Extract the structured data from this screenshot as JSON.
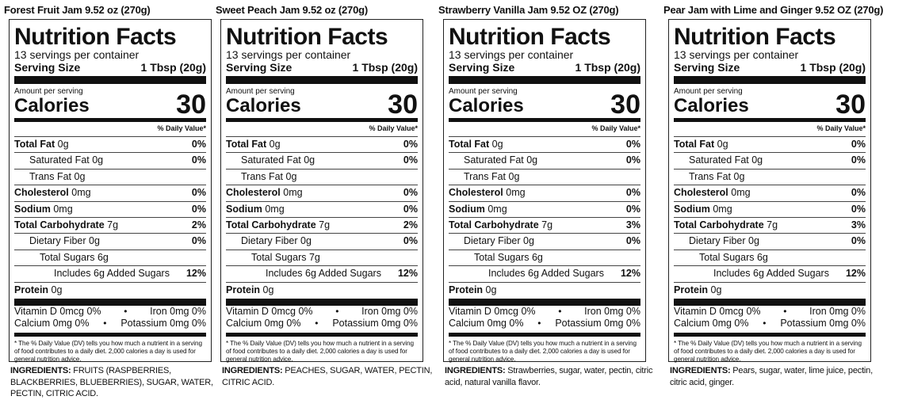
{
  "labels": {
    "nutrition_facts": "Nutrition Facts",
    "servings": "13 servings per container",
    "serving_size_label": "Serving Size",
    "serving_size_value": "1 Tbsp (20g)",
    "amount_per_serving": "Amount per serving",
    "calories_label": "Calories",
    "calories_value": "30",
    "dv_header": "% Daily Value*",
    "protein": "Protein",
    "protein_value": "0g",
    "vitamin_d": "Vitamin D 0mcg 0%",
    "iron": "Iron 0mg 0%",
    "calcium": "Calcium 0mg 0%",
    "potassium": "Potassium 0mg 0%",
    "bullet": "•",
    "footnote": "* The % Daily Value (DV) tells you how much a nutrient in a serving of food contributes to a daily diet. 2,000 calories a day is used for general nutrition advice.",
    "ingredients_label": "INGREDIENTS:"
  },
  "products": [
    {
      "title": "Forest Fruit Jam 9.52 oz (270g)",
      "rows": [
        {
          "name": "Total Fat",
          "amount": "0g",
          "pct": "0%",
          "bold": true,
          "indent": 0
        },
        {
          "name": "Saturated Fat",
          "amount": "0g",
          "pct": "0%",
          "bold": false,
          "indent": 1
        },
        {
          "name": "Trans Fat",
          "amount": "0g",
          "pct": "",
          "bold": false,
          "indent": 1
        },
        {
          "name": "Cholesterol",
          "amount": "0mg",
          "pct": "0%",
          "bold": true,
          "indent": 0
        },
        {
          "name": "Sodium",
          "amount": "0mg",
          "pct": "0%",
          "bold": true,
          "indent": 0
        },
        {
          "name": "Total Carbohydrate",
          "amount": "7g",
          "pct": "2%",
          "bold": true,
          "indent": 0
        },
        {
          "name": "Dietary Fiber",
          "amount": "0g",
          "pct": "0%",
          "bold": false,
          "indent": 1
        },
        {
          "name": "Total Sugars",
          "amount": "6g",
          "pct": "",
          "bold": false,
          "indent": 2
        },
        {
          "name": "Includes 6g Added Sugars",
          "amount": "",
          "pct": "12%",
          "bold": false,
          "indent": 3
        }
      ],
      "ingredients": "FRUITS (RASPBERRIES, BLACKBERRIES, BLUEBERRIES), SUGAR, WATER, PECTIN, CITRIC ACID."
    },
    {
      "title": "Sweet Peach Jam 9.52 oz (270g)",
      "rows": [
        {
          "name": "Total Fat",
          "amount": "0g",
          "pct": "0%",
          "bold": true,
          "indent": 0
        },
        {
          "name": "Saturated Fat",
          "amount": "0g",
          "pct": "0%",
          "bold": false,
          "indent": 1
        },
        {
          "name": "Trans Fat",
          "amount": "0g",
          "pct": "",
          "bold": false,
          "indent": 1
        },
        {
          "name": "Cholesterol",
          "amount": "0mg",
          "pct": "0%",
          "bold": true,
          "indent": 0
        },
        {
          "name": "Sodium",
          "amount": "0mg",
          "pct": "0%",
          "bold": true,
          "indent": 0
        },
        {
          "name": "Total Carbohydrate",
          "amount": "7g",
          "pct": "2%",
          "bold": true,
          "indent": 0
        },
        {
          "name": "Dietary Fiber",
          "amount": "0g",
          "pct": "0%",
          "bold": false,
          "indent": 1
        },
        {
          "name": "Total Sugars",
          "amount": "7g",
          "pct": "",
          "bold": false,
          "indent": 2
        },
        {
          "name": "Includes 6g Added Sugars",
          "amount": "",
          "pct": "12%",
          "bold": false,
          "indent": 3
        }
      ],
      "ingredients": "PEACHES, SUGAR, WATER, PECTIN, CITRIC ACID."
    },
    {
      "title": "Strawberry Vanilla Jam 9.52 OZ (270g)",
      "rows": [
        {
          "name": "Total Fat",
          "amount": "0g",
          "pct": "0%",
          "bold": true,
          "indent": 0
        },
        {
          "name": "Saturated Fat",
          "amount": "0g",
          "pct": "0%",
          "bold": false,
          "indent": 1
        },
        {
          "name": "Trans Fat",
          "amount": "0g",
          "pct": "",
          "bold": false,
          "indent": 1
        },
        {
          "name": "Cholesterol",
          "amount": "0mg",
          "pct": "0%",
          "bold": true,
          "indent": 0
        },
        {
          "name": "Sodium",
          "amount": "0mg",
          "pct": "0%",
          "bold": true,
          "indent": 0
        },
        {
          "name": "Total Carbohydrate",
          "amount": "7g",
          "pct": "3%",
          "bold": true,
          "indent": 0
        },
        {
          "name": "Dietary Fiber",
          "amount": "0g",
          "pct": "0%",
          "bold": false,
          "indent": 1
        },
        {
          "name": "Total Sugars",
          "amount": "6g",
          "pct": "",
          "bold": false,
          "indent": 2
        },
        {
          "name": "Includes 6g Added Sugars",
          "amount": "",
          "pct": "12%",
          "bold": false,
          "indent": 3
        }
      ],
      "ingredients": "Strawberries, sugar, water, pectin, citric acid, natural vanilla flavor."
    },
    {
      "title": "Pear Jam with Lime and Ginger 9.52 OZ (270g)",
      "rows": [
        {
          "name": "Total Fat",
          "amount": "0g",
          "pct": "0%",
          "bold": true,
          "indent": 0
        },
        {
          "name": "Saturated Fat",
          "amount": "0g",
          "pct": "0%",
          "bold": false,
          "indent": 1
        },
        {
          "name": "Trans Fat",
          "amount": "0g",
          "pct": "",
          "bold": false,
          "indent": 1
        },
        {
          "name": "Cholesterol",
          "amount": "0mg",
          "pct": "0%",
          "bold": true,
          "indent": 0
        },
        {
          "name": "Sodium",
          "amount": "0mg",
          "pct": "0%",
          "bold": true,
          "indent": 0
        },
        {
          "name": "Total Carbohydrate",
          "amount": "7g",
          "pct": "3%",
          "bold": true,
          "indent": 0
        },
        {
          "name": "Dietary Fiber",
          "amount": "0g",
          "pct": "0%",
          "bold": false,
          "indent": 1
        },
        {
          "name": "Total Sugars",
          "amount": "6g",
          "pct": "",
          "bold": false,
          "indent": 2
        },
        {
          "name": "Includes 6g Added Sugars",
          "amount": "",
          "pct": "12%",
          "bold": false,
          "indent": 3
        }
      ],
      "ingredients": "Pears, sugar, water, lime juice, pectin, citric acid, ginger."
    }
  ]
}
